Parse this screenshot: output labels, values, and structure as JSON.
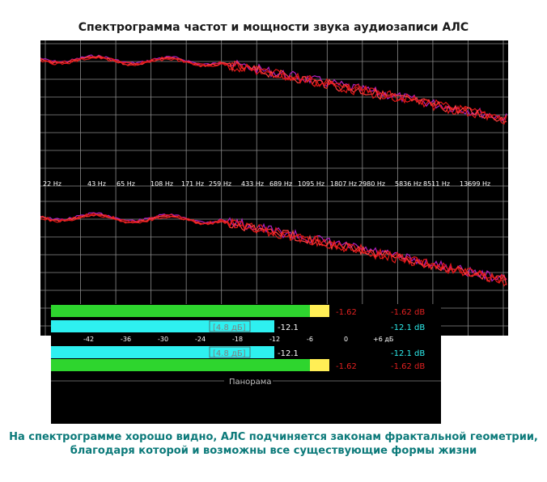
{
  "title": "Спектрограмма частот и мощности звука аудиозаписи АЛС",
  "spectrum": {
    "freq_labels": [
      "22 Hz",
      "43 Hz",
      "65 Hz",
      "108 Hz",
      "171 Hz",
      "259 Hz",
      "433 Hz",
      "689 Hz",
      "1095 Hz",
      "1807 Hz",
      "2980 Hz",
      "5836 Hz",
      "8511 Hz",
      "13699 Hz"
    ],
    "colors": {
      "background": "#000000",
      "grid": "#8a8a8a",
      "trace": "#e01818",
      "trace_alt": "#b020c0"
    }
  },
  "meter": {
    "bars": [
      {
        "db_box": "-1.62",
        "db_value": "-1.62 dB"
      },
      {
        "box_label": "[4.8 дБ]",
        "value": "-12.1",
        "db_value": "-12.1 dB"
      },
      {
        "box_label": "[4.8 дБ]",
        "value": "-12.1",
        "db_value": "-12.1 dB"
      },
      {
        "db_box": "-1.62",
        "db_value": "-1.62 dB"
      }
    ],
    "scale": [
      "-42",
      "-36",
      "-30",
      "-24",
      "-18",
      "-12",
      "-6",
      "0",
      "+6 дБ"
    ],
    "panorama_label": "Панорама",
    "colors": {
      "green": "#2ed52e",
      "cyan": "#2ef0f0",
      "yellow": "#ffee55",
      "red": "#e02020"
    }
  },
  "caption": {
    "line1": "На спектрограмме хорошо видно, АЛС подчиняется законам фрактальной геометрии,",
    "line2": "благодаря которой и возможны все существующие формы жизни"
  }
}
